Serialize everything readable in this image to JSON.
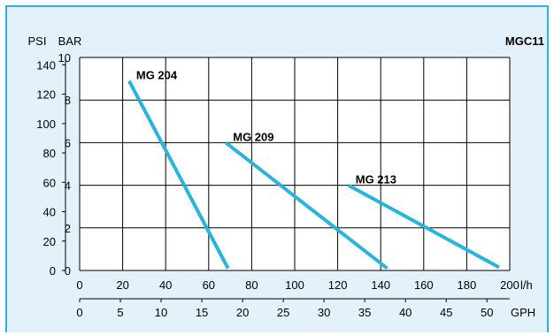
{
  "chart_data": {
    "type": "line",
    "title": "MGC11",
    "colors": {
      "line": "#2ab3db",
      "background": "#e3f1fa",
      "frame": "#2ab3db"
    },
    "grid": true,
    "x_axis": {
      "label": "l/h",
      "range": [
        0,
        200
      ],
      "ticks": [
        "0",
        "20",
        "40",
        "60",
        "80",
        "100",
        "120",
        "140",
        "160",
        "180",
        "200"
      ]
    },
    "x_axis_secondary": {
      "label": "GPH",
      "range": [
        0,
        52.8
      ],
      "ticks": [
        "0",
        "5",
        "10",
        "15",
        "20",
        "25",
        "30",
        "35",
        "40",
        "45",
        "50"
      ]
    },
    "y_axis": {
      "label": "BAR",
      "range": [
        0,
        10
      ],
      "ticks": [
        "0",
        "2",
        "4",
        "6",
        "8",
        "10"
      ]
    },
    "y_axis_secondary": {
      "label": "PSI",
      "range": [
        0,
        145
      ],
      "ticks": [
        "0",
        "20",
        "40",
        "60",
        "80",
        "100",
        "120",
        "140"
      ]
    },
    "series": [
      {
        "name": "MG 204",
        "x": [
          23,
          69
        ],
        "y": [
          8.9,
          0.1
        ]
      },
      {
        "name": "MG 209",
        "x": [
          68,
          143
        ],
        "y": [
          6.0,
          0.1
        ]
      },
      {
        "name": "MG 213",
        "x": [
          125,
          195
        ],
        "y": [
          4.0,
          0.15
        ]
      }
    ]
  }
}
